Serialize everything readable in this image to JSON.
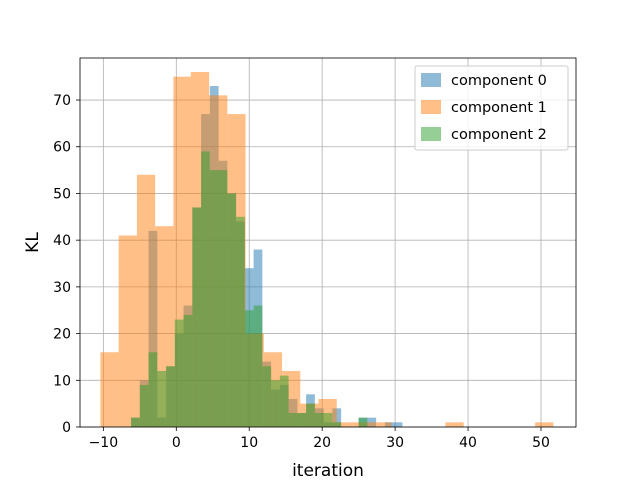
{
  "chart_data": {
    "type": "histogram",
    "title": "",
    "xlabel": "iteration",
    "ylabel": "KL",
    "xlim": [
      -13.2,
      54.8
    ],
    "ylim": [
      0,
      79
    ],
    "xticks": [
      -10,
      0,
      10,
      20,
      30,
      40,
      50
    ],
    "yticks": [
      0,
      10,
      20,
      30,
      40,
      50,
      60,
      70
    ],
    "grid": true,
    "legend_position": "top-right",
    "series": [
      {
        "name": "component 0",
        "color": "#1f77b4",
        "bins": [
          {
            "x0": -6.2,
            "x1": -5.0,
            "count": 2
          },
          {
            "x0": -5.0,
            "x1": -3.8,
            "count": 10
          },
          {
            "x0": -3.8,
            "x1": -2.6,
            "count": 42
          },
          {
            "x0": -2.6,
            "x1": -1.4,
            "count": 2
          },
          {
            "x0": -1.4,
            "x1": -0.2,
            "count": 13
          },
          {
            "x0": -0.2,
            "x1": 1.0,
            "count": 20
          },
          {
            "x0": 1.0,
            "x1": 2.2,
            "count": 26
          },
          {
            "x0": 2.2,
            "x1": 3.4,
            "count": 47
          },
          {
            "x0": 3.4,
            "x1": 4.6,
            "count": 67
          },
          {
            "x0": 4.6,
            "x1": 5.8,
            "count": 73
          },
          {
            "x0": 5.8,
            "x1": 7.0,
            "count": 57
          },
          {
            "x0": 7.0,
            "x1": 8.2,
            "count": 50
          },
          {
            "x0": 8.2,
            "x1": 9.4,
            "count": 44
          },
          {
            "x0": 9.4,
            "x1": 10.6,
            "count": 34
          },
          {
            "x0": 10.6,
            "x1": 11.8,
            "count": 38
          },
          {
            "x0": 11.8,
            "x1": 13.0,
            "count": 14
          },
          {
            "x0": 13.0,
            "x1": 14.2,
            "count": 8
          },
          {
            "x0": 14.2,
            "x1": 15.4,
            "count": 9
          },
          {
            "x0": 15.4,
            "x1": 16.6,
            "count": 6
          },
          {
            "x0": 16.6,
            "x1": 17.8,
            "count": 3
          },
          {
            "x0": 17.8,
            "x1": 19.0,
            "count": 7
          },
          {
            "x0": 19.0,
            "x1": 20.2,
            "count": 4
          },
          {
            "x0": 20.2,
            "x1": 21.4,
            "count": 1
          },
          {
            "x0": 21.4,
            "x1": 22.6,
            "count": 4
          },
          {
            "x0": 22.6,
            "x1": 23.8,
            "count": 0
          },
          {
            "x0": 23.8,
            "x1": 25.0,
            "count": 0
          },
          {
            "x0": 25.0,
            "x1": 26.2,
            "count": 2
          },
          {
            "x0": 26.2,
            "x1": 27.4,
            "count": 2
          },
          {
            "x0": 27.4,
            "x1": 28.6,
            "count": 0
          },
          {
            "x0": 28.6,
            "x1": 29.8,
            "count": 1
          },
          {
            "x0": 29.8,
            "x1": 31.0,
            "count": 1
          }
        ]
      },
      {
        "name": "component 1",
        "color": "#ff7f0e",
        "bins": [
          {
            "x0": -10.4,
            "x1": -7.9,
            "count": 16
          },
          {
            "x0": -7.9,
            "x1": -5.4,
            "count": 41
          },
          {
            "x0": -5.4,
            "x1": -2.9,
            "count": 54
          },
          {
            "x0": -2.9,
            "x1": -0.4,
            "count": 43
          },
          {
            "x0": -0.4,
            "x1": 2.0,
            "count": 75
          },
          {
            "x0": 2.0,
            "x1": 4.5,
            "count": 76
          },
          {
            "x0": 4.5,
            "x1": 7.0,
            "count": 71
          },
          {
            "x0": 7.0,
            "x1": 9.5,
            "count": 67
          },
          {
            "x0": 9.5,
            "x1": 12.0,
            "count": 20
          },
          {
            "x0": 12.0,
            "x1": 14.5,
            "count": 16
          },
          {
            "x0": 14.5,
            "x1": 17.0,
            "count": 12
          },
          {
            "x0": 17.0,
            "x1": 19.5,
            "count": 5
          },
          {
            "x0": 19.5,
            "x1": 22.0,
            "count": 6
          },
          {
            "x0": 22.0,
            "x1": 24.5,
            "count": 1
          },
          {
            "x0": 24.5,
            "x1": 27.0,
            "count": 1
          },
          {
            "x0": 27.0,
            "x1": 29.5,
            "count": 1
          },
          {
            "x0": 36.9,
            "x1": 39.4,
            "count": 1
          },
          {
            "x0": 49.2,
            "x1": 51.7,
            "count": 1
          }
        ]
      },
      {
        "name": "component 2",
        "color": "#2ca02c",
        "bins": [
          {
            "x0": -6.2,
            "x1": -5.0,
            "count": 2
          },
          {
            "x0": -5.0,
            "x1": -3.8,
            "count": 9
          },
          {
            "x0": -3.8,
            "x1": -2.6,
            "count": 16
          },
          {
            "x0": -2.6,
            "x1": -1.4,
            "count": 12
          },
          {
            "x0": -1.4,
            "x1": -0.2,
            "count": 13
          },
          {
            "x0": -0.2,
            "x1": 1.0,
            "count": 23
          },
          {
            "x0": 1.0,
            "x1": 2.2,
            "count": 24
          },
          {
            "x0": 2.2,
            "x1": 3.4,
            "count": 47
          },
          {
            "x0": 3.4,
            "x1": 4.6,
            "count": 59
          },
          {
            "x0": 4.6,
            "x1": 5.8,
            "count": 55
          },
          {
            "x0": 5.8,
            "x1": 7.0,
            "count": 55
          },
          {
            "x0": 7.0,
            "x1": 8.2,
            "count": 50
          },
          {
            "x0": 8.2,
            "x1": 9.4,
            "count": 45
          },
          {
            "x0": 9.4,
            "x1": 10.6,
            "count": 25
          },
          {
            "x0": 10.6,
            "x1": 11.8,
            "count": 26
          },
          {
            "x0": 11.8,
            "x1": 13.0,
            "count": 13
          },
          {
            "x0": 13.0,
            "x1": 14.2,
            "count": 10
          },
          {
            "x0": 14.2,
            "x1": 15.4,
            "count": 11
          },
          {
            "x0": 15.4,
            "x1": 16.6,
            "count": 3
          },
          {
            "x0": 16.6,
            "x1": 17.8,
            "count": 3
          },
          {
            "x0": 17.8,
            "x1": 19.0,
            "count": 5
          },
          {
            "x0": 19.0,
            "x1": 20.2,
            "count": 3
          },
          {
            "x0": 20.2,
            "x1": 21.4,
            "count": 3
          },
          {
            "x0": 21.4,
            "x1": 22.6,
            "count": 1
          },
          {
            "x0": 22.6,
            "x1": 23.8,
            "count": 0
          },
          {
            "x0": 23.8,
            "x1": 25.0,
            "count": 0
          },
          {
            "x0": 25.0,
            "x1": 26.2,
            "count": 2
          }
        ]
      }
    ]
  }
}
